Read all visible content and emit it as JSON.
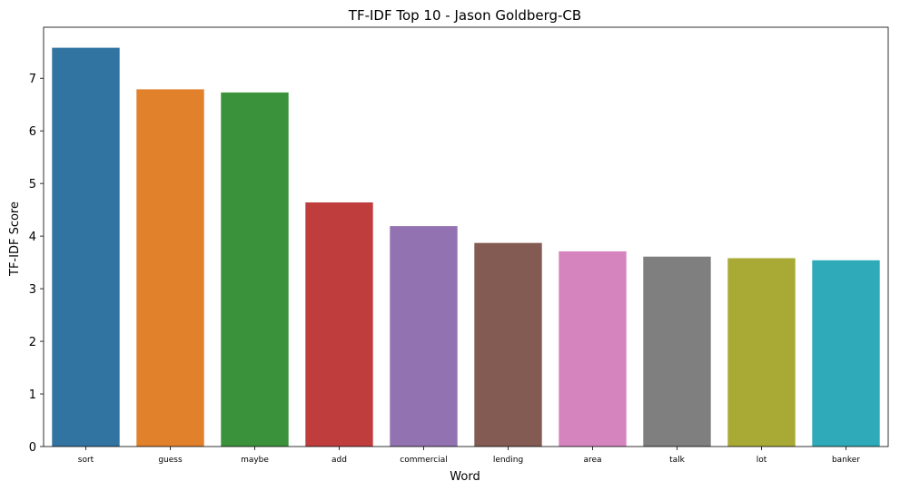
{
  "chart_data": {
    "type": "bar",
    "title": "TF-IDF Top 10 - Jason Goldberg-CB",
    "xlabel": "Word",
    "ylabel": "TF-IDF Score",
    "categories": [
      "sort",
      "guess",
      "maybe",
      "add",
      "commercial",
      "lending",
      "area",
      "talk",
      "lot",
      "banker"
    ],
    "values": [
      7.58,
      6.79,
      6.73,
      4.64,
      4.19,
      3.87,
      3.71,
      3.61,
      3.58,
      3.54
    ],
    "colors": [
      "#3274a1",
      "#e1812c",
      "#3a923a",
      "#c03d3e",
      "#9372b2",
      "#845b53",
      "#d684bd",
      "#7f7f7f",
      "#a9aa35",
      "#2eaab8"
    ],
    "ylim": [
      0,
      7.97
    ],
    "yticks": [
      0,
      1,
      2,
      3,
      4,
      5,
      6,
      7
    ],
    "grid": false
  }
}
